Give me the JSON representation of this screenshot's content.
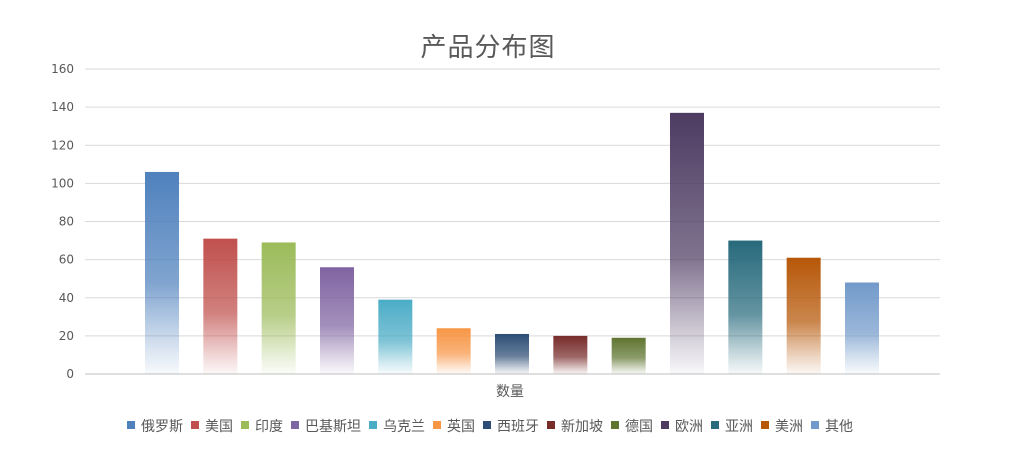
{
  "chart_data": {
    "type": "bar",
    "title": "产品分布图",
    "xlabel": "数量",
    "ylabel": "",
    "ylim": [
      0,
      160
    ],
    "yticks": [
      0,
      20,
      40,
      60,
      80,
      100,
      120,
      140,
      160
    ],
    "grid": true,
    "legend_position": "bottom",
    "categories": [
      "数量"
    ],
    "series": [
      {
        "name": "俄罗斯",
        "values": [
          106
        ],
        "color": "#4f81bd"
      },
      {
        "name": "美国",
        "values": [
          71
        ],
        "color": "#c0504d"
      },
      {
        "name": "印度",
        "values": [
          69
        ],
        "color": "#9bbb59"
      },
      {
        "name": "巴基斯坦",
        "values": [
          56
        ],
        "color": "#8064a2"
      },
      {
        "name": "乌克兰",
        "values": [
          39
        ],
        "color": "#4bacc6"
      },
      {
        "name": "英国",
        "values": [
          24
        ],
        "color": "#f79646"
      },
      {
        "name": "西班牙",
        "values": [
          21
        ],
        "color": "#2c4d75"
      },
      {
        "name": "新加坡",
        "values": [
          20
        ],
        "color": "#772c2a"
      },
      {
        "name": "德国",
        "values": [
          19
        ],
        "color": "#5f7530"
      },
      {
        "name": "欧洲",
        "values": [
          137
        ],
        "color": "#4d3b62"
      },
      {
        "name": "亚洲",
        "values": [
          70
        ],
        "color": "#276a7c"
      },
      {
        "name": "美洲",
        "values": [
          61
        ],
        "color": "#b65708"
      },
      {
        "name": "其他",
        "values": [
          48
        ],
        "color": "#729aca"
      }
    ]
  }
}
